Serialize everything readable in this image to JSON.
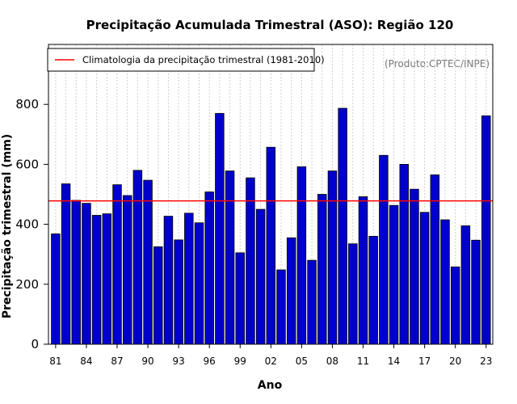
{
  "chart_data": {
    "type": "bar",
    "title": "Precipitação Acumulada Trimestral (ASO): Região 120",
    "xlabel": "Ano",
    "ylabel": "Precipitação trimestral (mm)",
    "credit": "(Produto:CPTEC/INPE)",
    "ylim": [
      0,
      1000
    ],
    "yticks": [
      0,
      200,
      400,
      600,
      800
    ],
    "xtick_labels": [
      "81",
      "84",
      "87",
      "90",
      "93",
      "96",
      "99",
      "02",
      "05",
      "08",
      "11",
      "14",
      "17",
      "20",
      "23"
    ],
    "xtick_positions": [
      0,
      3,
      6,
      9,
      12,
      15,
      18,
      21,
      24,
      27,
      30,
      33,
      36,
      39,
      42
    ],
    "categories": [
      "1981",
      "1982",
      "1983",
      "1984",
      "1985",
      "1986",
      "1987",
      "1988",
      "1989",
      "1990",
      "1991",
      "1992",
      "1993",
      "1994",
      "1995",
      "1996",
      "1997",
      "1998",
      "1999",
      "2000",
      "2001",
      "2002",
      "2003",
      "2004",
      "2005",
      "2006",
      "2007",
      "2008",
      "2009",
      "2010",
      "2011",
      "2012",
      "2013",
      "2014",
      "2015",
      "2016",
      "2017",
      "2018",
      "2019",
      "2020",
      "2021",
      "2022",
      "2023"
    ],
    "values": [
      368,
      535,
      480,
      470,
      430,
      435,
      532,
      496,
      580,
      547,
      325,
      427,
      348,
      437,
      405,
      508,
      770,
      578,
      305,
      555,
      450,
      657,
      248,
      355,
      592,
      280,
      500,
      578,
      787,
      335,
      492,
      360,
      630,
      463,
      600,
      517,
      440,
      565,
      415,
      258,
      395,
      347,
      762
    ],
    "reference_line": {
      "label": "Climatologia da precipitação trimestral (1981-2010)",
      "value": 478,
      "color": "#ff0000"
    },
    "bar_color": "#0000cc",
    "bar_edge_color": "#000000",
    "grid": true,
    "legend_position": "top-left"
  }
}
